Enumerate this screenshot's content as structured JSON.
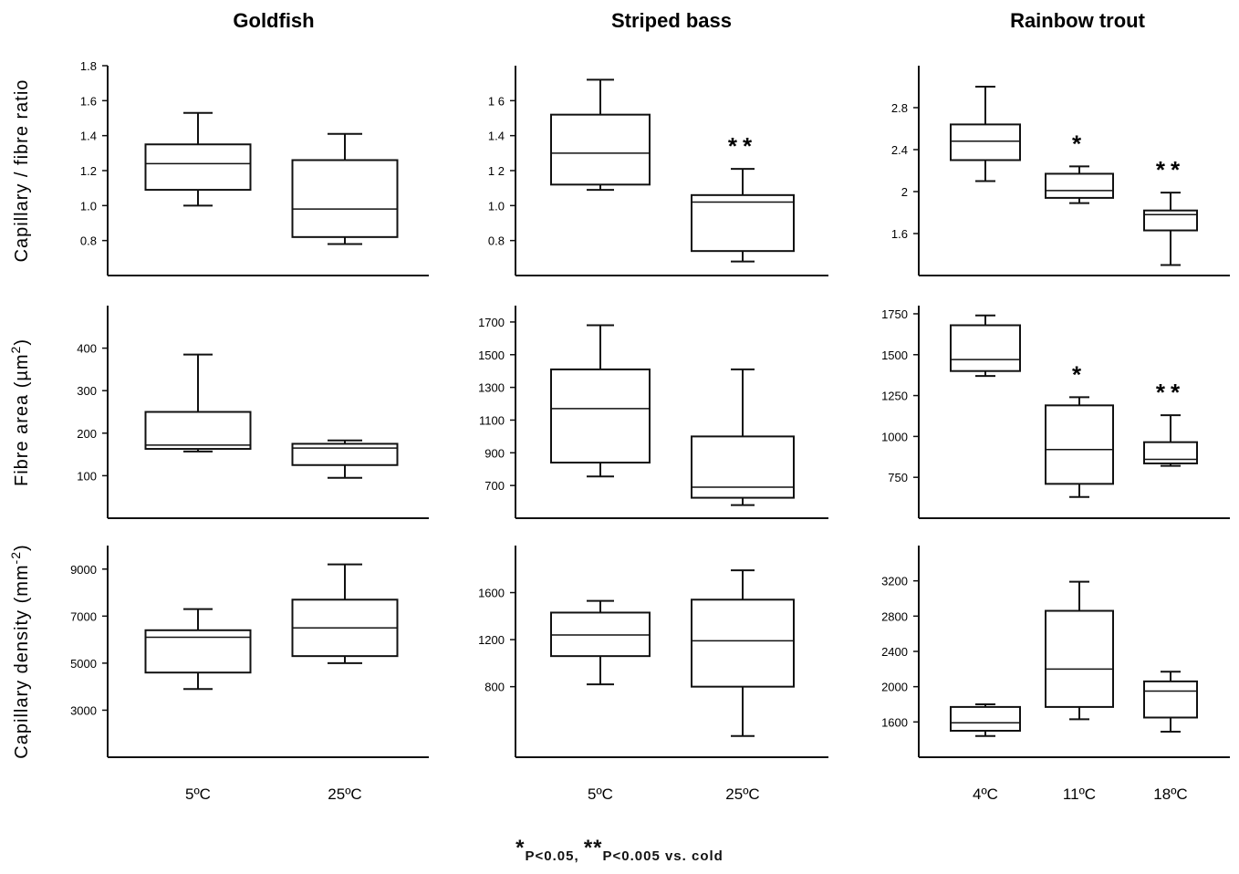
{
  "chart_data": {
    "type": "box",
    "columns": [
      "Goldfish",
      "Striped bass",
      "Rainbow trout"
    ],
    "row_labels": [
      {
        "pre": "Capillary / fibre ratio",
        "sup": "",
        "post": ""
      },
      {
        "pre": "Fibre area (µm",
        "sup": "2",
        "post": ")"
      },
      {
        "pre": "Capillary density (mm",
        "sup": "-2",
        "post": ")"
      }
    ],
    "footnote": {
      "star1": "*",
      "text1": "P<0.05, ",
      "star2": "**",
      "text2": "P<0.005 vs. cold"
    },
    "panels": [
      {
        "species": "Goldfish",
        "measure": "Capillary / fibre ratio",
        "ylim": [
          0.6,
          1.8
        ],
        "yticks": [
          "1.8",
          "1.6",
          "1.4",
          "1.2",
          "1.0",
          "0.8"
        ],
        "categories": [
          "5ºC",
          "25ºC"
        ],
        "boxes": [
          {
            "min": 1.0,
            "q1": 1.09,
            "median": 1.24,
            "q3": 1.35,
            "max": 1.53,
            "sig": ""
          },
          {
            "min": 0.78,
            "q1": 0.82,
            "median": 0.98,
            "q3": 1.26,
            "max": 1.41,
            "sig": ""
          }
        ]
      },
      {
        "species": "Striped bass",
        "measure": "Capillary / fibre ratio",
        "ylim": [
          0.6,
          1.8
        ],
        "yticks": [
          "1 6",
          "1.4",
          "1 2",
          "1.0",
          "0.8"
        ],
        "categories": [
          "5ºC",
          "25ºC"
        ],
        "boxes": [
          {
            "min": 1.09,
            "q1": 1.12,
            "median": 1.3,
            "q3": 1.52,
            "max": 1.72,
            "sig": ""
          },
          {
            "min": 0.68,
            "q1": 0.74,
            "median": 1.02,
            "q3": 1.06,
            "max": 1.21,
            "sig": "**"
          }
        ]
      },
      {
        "species": "Rainbow trout",
        "measure": "Capillary / fibre ratio",
        "ylim": [
          1.2,
          3.2
        ],
        "yticks": [
          "2.8",
          "2.4",
          "2",
          "1.6"
        ],
        "categories": [
          "4ºC",
          "11ºC",
          "18ºC"
        ],
        "boxes": [
          {
            "min": 2.1,
            "q1": 2.3,
            "median": 2.48,
            "q3": 2.64,
            "max": 3.0,
            "sig": ""
          },
          {
            "min": 1.89,
            "q1": 1.94,
            "median": 2.01,
            "q3": 2.17,
            "max": 2.24,
            "sig": "*"
          },
          {
            "min": 1.3,
            "q1": 1.63,
            "median": 1.78,
            "q3": 1.82,
            "max": 1.99,
            "sig": "**"
          }
        ]
      },
      {
        "species": "Goldfish",
        "measure": "Fibre area",
        "ylim": [
          0,
          500
        ],
        "yticks": [
          "400",
          "300",
          "200",
          "100"
        ],
        "categories": [
          "5ºC",
          "25ºC"
        ],
        "boxes": [
          {
            "min": 157,
            "q1": 163,
            "median": 172,
            "q3": 250,
            "max": 385,
            "sig": ""
          },
          {
            "min": 95,
            "q1": 125,
            "median": 165,
            "q3": 175,
            "max": 183,
            "sig": ""
          }
        ]
      },
      {
        "species": "Striped bass",
        "measure": "Fibre area",
        "ylim": [
          500,
          1800
        ],
        "yticks": [
          "1700",
          "1500",
          "1300",
          "1100",
          "900",
          "700"
        ],
        "categories": [
          "5ºC",
          "25ºC"
        ],
        "boxes": [
          {
            "min": 755,
            "q1": 840,
            "median": 1170,
            "q3": 1410,
            "max": 1680,
            "sig": ""
          },
          {
            "min": 580,
            "q1": 625,
            "median": 690,
            "q3": 1000,
            "max": 1410,
            "sig": ""
          }
        ]
      },
      {
        "species": "Rainbow trout",
        "measure": "Fibre area",
        "ylim": [
          500,
          1800
        ],
        "yticks": [
          "1750",
          "1500",
          "1250",
          "1000",
          "750"
        ],
        "categories": [
          "4ºC",
          "11ºC",
          "18ºC"
        ],
        "boxes": [
          {
            "min": 1370,
            "q1": 1400,
            "median": 1470,
            "q3": 1680,
            "max": 1740,
            "sig": ""
          },
          {
            "min": 630,
            "q1": 710,
            "median": 920,
            "q3": 1190,
            "max": 1240,
            "sig": "*"
          },
          {
            "min": 820,
            "q1": 835,
            "median": 860,
            "q3": 965,
            "max": 1130,
            "sig": "**"
          }
        ]
      },
      {
        "species": "Goldfish",
        "measure": "Capillary density",
        "ylim": [
          1000,
          10000
        ],
        "yticks": [
          "9000",
          "7000",
          "5000",
          "3000"
        ],
        "categories": [
          "5ºC",
          "25ºC"
        ],
        "boxes": [
          {
            "min": 3900,
            "q1": 4600,
            "median": 6100,
            "q3": 6400,
            "max": 7300,
            "sig": ""
          },
          {
            "min": 5000,
            "q1": 5300,
            "median": 6500,
            "q3": 7700,
            "max": 9200,
            "sig": ""
          }
        ]
      },
      {
        "species": "Striped bass",
        "measure": "Capillary density",
        "ylim": [
          200,
          2000
        ],
        "yticks": [
          "1600",
          "1200",
          "800"
        ],
        "categories": [
          "5ºC",
          "25ºC"
        ],
        "boxes": [
          {
            "min": 820,
            "q1": 1060,
            "median": 1240,
            "q3": 1430,
            "max": 1530,
            "sig": ""
          },
          {
            "min": 380,
            "q1": 800,
            "median": 1190,
            "q3": 1540,
            "max": 1790,
            "sig": ""
          }
        ]
      },
      {
        "species": "Rainbow trout",
        "measure": "Capillary density",
        "ylim": [
          1200,
          3600
        ],
        "yticks": [
          "3200",
          "2800",
          "2400",
          "2000",
          "1600"
        ],
        "categories": [
          "4ºC",
          "11ºC",
          "18ºC"
        ],
        "boxes": [
          {
            "min": 1440,
            "q1": 1500,
            "median": 1590,
            "q3": 1770,
            "max": 1800,
            "sig": ""
          },
          {
            "min": 1630,
            "q1": 1770,
            "median": 2200,
            "q3": 2860,
            "max": 3190,
            "sig": ""
          },
          {
            "min": 1490,
            "q1": 1650,
            "median": 1950,
            "q3": 2060,
            "max": 2170,
            "sig": ""
          }
        ]
      }
    ]
  }
}
